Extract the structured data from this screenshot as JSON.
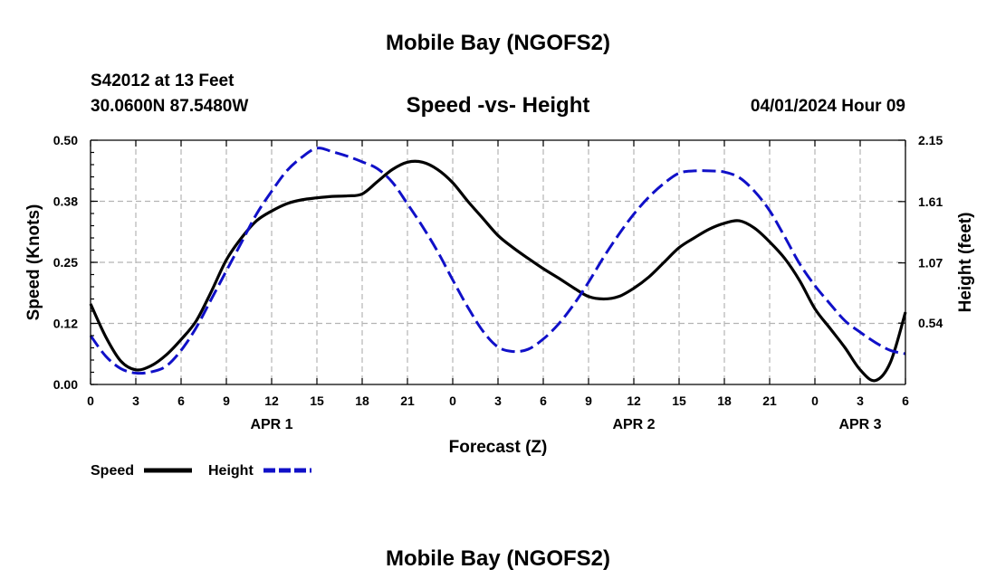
{
  "page": {
    "top_title": "Mobile Bay (NGOFS2)",
    "bottom_title": "Mobile Bay (NGOFS2)"
  },
  "info": {
    "station": "S42012 at 13 Feet",
    "location": "30.0600N  87.5480W",
    "timestamp": "04/01/2024 Hour 09"
  },
  "chart_data": {
    "type": "line",
    "title": "Speed -vs- Height",
    "xlabel": "Forecast (Z)",
    "ylabel": "Speed (Knots)",
    "y2label": "Height (feet)",
    "x_unit": "hours since 03/31/2024 00Z",
    "xlim": [
      0,
      54
    ],
    "ylim": [
      0,
      0.5
    ],
    "y2lim": [
      0,
      2.15
    ],
    "x_ticks": [
      0,
      3,
      6,
      9,
      12,
      15,
      18,
      21,
      24,
      27,
      30,
      33,
      36,
      39,
      42,
      45,
      48,
      51,
      54
    ],
    "x_tick_labels": [
      "0",
      "3",
      "6",
      "9",
      "12",
      "15",
      "18",
      "21",
      "0",
      "3",
      "6",
      "9",
      "12",
      "15",
      "18",
      "21",
      "0",
      "3",
      "6"
    ],
    "y_ticks": [
      0,
      0.125,
      0.25,
      0.375,
      0.5
    ],
    "y_tick_labels": [
      "0.00",
      "0.12",
      "0.25",
      "0.38",
      "0.50"
    ],
    "y2_ticks": [
      0.54,
      1.07,
      1.61,
      2.15
    ],
    "y2_tick_labels": [
      "0.54",
      "1.07",
      "1.61",
      "2.15"
    ],
    "date_labels": [
      {
        "x": 12,
        "label": "APR 1"
      },
      {
        "x": 36,
        "label": "APR 2"
      },
      {
        "x": 51,
        "label": "APR 3"
      }
    ],
    "grid": true,
    "legend_position": "bottom-left",
    "series": [
      {
        "name": "Speed",
        "axis": "left",
        "color": "#000000",
        "dash": "solid",
        "x": [
          0,
          1,
          2,
          3,
          4,
          5,
          6,
          7,
          8,
          9,
          10,
          11,
          12,
          13,
          14,
          15,
          16,
          17,
          18,
          19,
          20,
          21,
          22,
          23,
          24,
          25,
          26,
          27,
          28,
          29,
          30,
          31,
          32,
          33,
          34,
          35,
          36,
          37,
          38,
          39,
          40,
          41,
          42,
          43,
          44,
          45,
          46,
          47,
          48,
          49,
          50,
          51,
          52,
          53,
          54
        ],
        "values": [
          0.165,
          0.098,
          0.048,
          0.03,
          0.038,
          0.06,
          0.092,
          0.13,
          0.19,
          0.255,
          0.3,
          0.335,
          0.355,
          0.37,
          0.378,
          0.382,
          0.385,
          0.386,
          0.39,
          0.415,
          0.44,
          0.455,
          0.455,
          0.44,
          0.413,
          0.375,
          0.34,
          0.305,
          0.28,
          0.258,
          0.237,
          0.218,
          0.198,
          0.18,
          0.175,
          0.18,
          0.197,
          0.22,
          0.25,
          0.28,
          0.3,
          0.318,
          0.33,
          0.335,
          0.32,
          0.292,
          0.258,
          0.212,
          0.155,
          0.115,
          0.075,
          0.03,
          0.008,
          0.045,
          0.148
        ]
      },
      {
        "name": "Height",
        "axis": "right",
        "color": "#1010c8",
        "dash": "dashed",
        "x": [
          0,
          1,
          2,
          3,
          4,
          5,
          6,
          7,
          8,
          9,
          10,
          11,
          12,
          13,
          14,
          15,
          16,
          17,
          18,
          19,
          20,
          21,
          22,
          23,
          24,
          25,
          26,
          27,
          28,
          29,
          30,
          31,
          32,
          33,
          34,
          35,
          36,
          37,
          38,
          39,
          40,
          41,
          42,
          43,
          44,
          45,
          46,
          47,
          48,
          49,
          50,
          51,
          52,
          53,
          54
        ],
        "values": [
          0.43,
          0.25,
          0.14,
          0.1,
          0.11,
          0.16,
          0.3,
          0.5,
          0.75,
          1.0,
          1.25,
          1.5,
          1.7,
          1.88,
          2.0,
          2.08,
          2.05,
          2.01,
          1.96,
          1.9,
          1.78,
          1.59,
          1.39,
          1.17,
          0.92,
          0.68,
          0.47,
          0.33,
          0.29,
          0.31,
          0.4,
          0.53,
          0.7,
          0.9,
          1.12,
          1.32,
          1.5,
          1.65,
          1.77,
          1.86,
          1.88,
          1.88,
          1.87,
          1.82,
          1.7,
          1.53,
          1.3,
          1.06,
          0.87,
          0.71,
          0.56,
          0.46,
          0.37,
          0.3,
          0.27
        ]
      }
    ]
  },
  "legend": {
    "speed_label": "Speed",
    "height_label": "Height"
  }
}
